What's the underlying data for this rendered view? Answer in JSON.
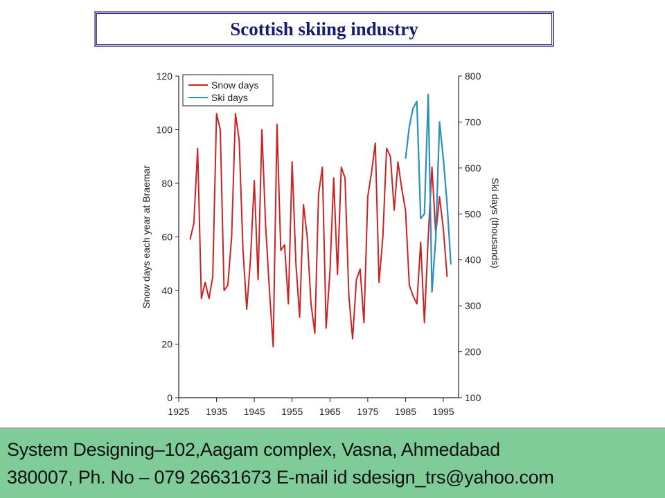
{
  "slide": {
    "title": "Scottish skiing industry"
  },
  "footer": {
    "line1": "System Designing–102,Aagam complex, Vasna, Ahmedabad",
    "line2": "380007, Ph. No – 079 26631673 E-mail id sdesign_trs@yahoo.com"
  },
  "colors": {
    "snow_days": "#cc2222",
    "ski_days": "#2a8fc0",
    "title": "#1a1a6e",
    "footer_bg": "#7fcc99"
  },
  "chart_data": {
    "type": "line",
    "title": "Scottish skiing industry",
    "xlabel": "",
    "ylabel": "Snow days each year at Braemar",
    "y2label": "Ski days (thousands)",
    "xlim": [
      1925,
      1998
    ],
    "ylim": [
      0,
      120
    ],
    "y2lim": [
      100,
      800
    ],
    "xticks": [
      "1925",
      "1935",
      "1945",
      "1955",
      "1965",
      "1975",
      "1985",
      "1995"
    ],
    "yticks": [
      "0",
      "20",
      "40",
      "60",
      "80",
      "100",
      "120"
    ],
    "y2ticks": [
      "100",
      "200",
      "300",
      "400",
      "500",
      "600",
      "700",
      "800"
    ],
    "grid": false,
    "legend": {
      "position": "upper-left",
      "entries": [
        "Snow days",
        "Ski days"
      ]
    },
    "series": [
      {
        "name": "Snow days",
        "axis": "left",
        "x": [
          1928,
          1929,
          1930,
          1931,
          1932,
          1933,
          1934,
          1935,
          1936,
          1937,
          1938,
          1939,
          1940,
          1941,
          1942,
          1943,
          1944,
          1945,
          1946,
          1947,
          1948,
          1949,
          1950,
          1951,
          1952,
          1953,
          1954,
          1955,
          1956,
          1957,
          1958,
          1959,
          1960,
          1961,
          1962,
          1963,
          1964,
          1965,
          1966,
          1967,
          1968,
          1969,
          1970,
          1971,
          1972,
          1973,
          1974,
          1975,
          1976,
          1977,
          1978,
          1979,
          1980,
          1981,
          1982,
          1983,
          1984,
          1985,
          1986,
          1987,
          1988,
          1989,
          1990,
          1991,
          1992,
          1993,
          1994,
          1995,
          1996
        ],
        "values": [
          59,
          65,
          93,
          37,
          43,
          37,
          45,
          106,
          100,
          40,
          42,
          60,
          106,
          96,
          55,
          33,
          52,
          81,
          44,
          100,
          64,
          40,
          19,
          102,
          55,
          57,
          35,
          88,
          50,
          30,
          72,
          60,
          35,
          24,
          76,
          86,
          26,
          47,
          82,
          46,
          86,
          82,
          38,
          22,
          44,
          48,
          28,
          75,
          84,
          95,
          43,
          60,
          93,
          90,
          70,
          88,
          78,
          70,
          42,
          38,
          35,
          58,
          28,
          60,
          86,
          61,
          75,
          63,
          45
        ]
      },
      {
        "name": "Ski days",
        "axis": "right",
        "x": [
          1985,
          1986,
          1987,
          1988,
          1989,
          1990,
          1991,
          1992,
          1993,
          1994,
          1995,
          1996,
          1997
        ],
        "values": [
          620,
          690,
          730,
          745,
          490,
          500,
          760,
          330,
          450,
          700,
          620,
          520,
          390
        ]
      }
    ]
  }
}
